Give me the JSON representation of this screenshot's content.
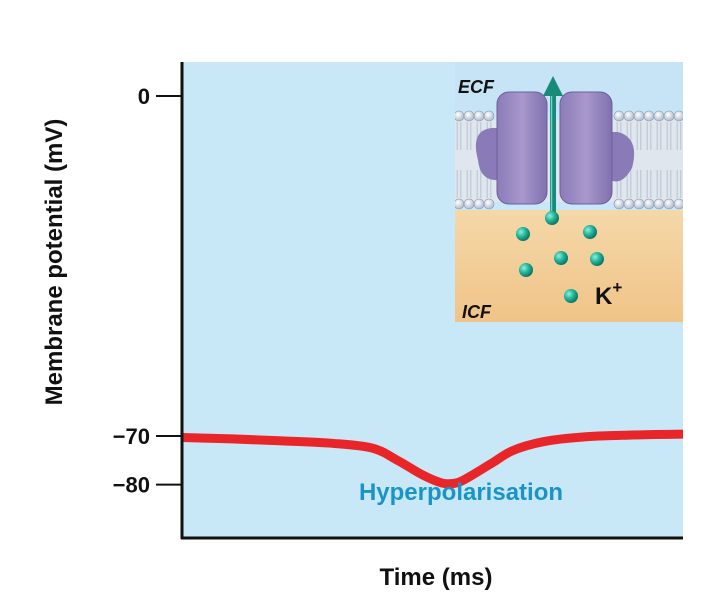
{
  "chart_data": {
    "type": "line",
    "title": "",
    "xlabel": "Time (ms)",
    "ylabel": "Membrane potential (mV)",
    "yticks": [
      {
        "value": 0,
        "label": "0"
      },
      {
        "value": -70,
        "label": "−70"
      },
      {
        "value": -80,
        "label": "−80"
      }
    ],
    "ylim": [
      -91,
      7
    ],
    "xlim": [
      0,
      100
    ],
    "series": [
      {
        "color": "#e8262a",
        "x": [
          0,
          10,
          20,
          30,
          38,
          43,
          48,
          52,
          55,
          58,
          62,
          66,
          72,
          80,
          90,
          100
        ],
        "y": [
          -70.3,
          -70.6,
          -71.0,
          -71.5,
          -72.5,
          -75.0,
          -78.0,
          -79.7,
          -79.6,
          -78.0,
          -75.5,
          -73.0,
          -71.2,
          -70.2,
          -69.8,
          -69.6
        ]
      }
    ],
    "annotations": [
      {
        "text": "Hyperpolarisation",
        "color": "#1a94c8"
      }
    ],
    "inset": {
      "top_label": "ECF",
      "bottom_label": "ICF",
      "ion_symbol": "K",
      "ion_charge": "+"
    },
    "colors": {
      "plot_bg": "#c8e8f8",
      "axis": "#111111",
      "line": "#e8262a",
      "annotation": "#1a94c8"
    }
  }
}
